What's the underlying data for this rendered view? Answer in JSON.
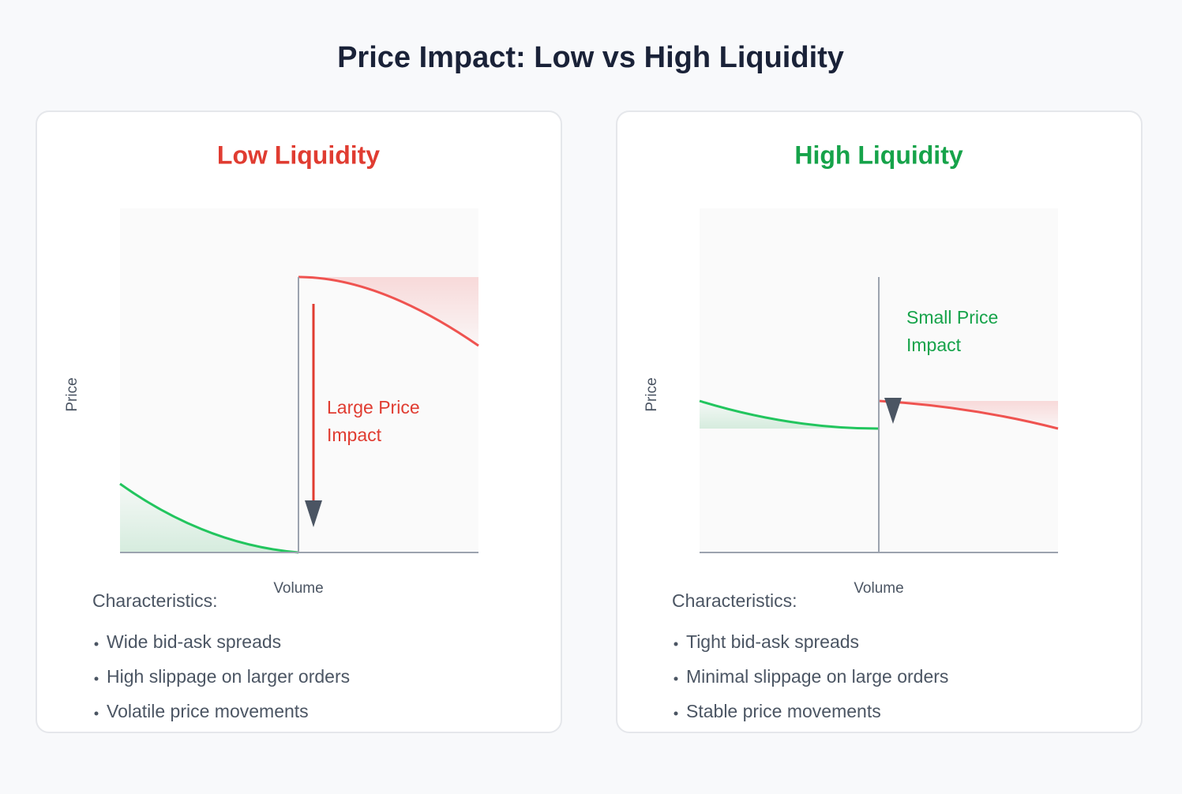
{
  "header": {
    "title": "Price Impact: Low vs High Liquidity"
  },
  "panels": [
    {
      "title": "Low Liquidity",
      "y_axis_label": "Price",
      "x_axis_label": "Volume",
      "annotation": [
        "Large Price",
        "Impact"
      ],
      "characteristics_heading": "Characteristics:",
      "characteristics": [
        "Wide bid-ask spreads",
        "High slippage on larger orders",
        "Volatile price movements"
      ]
    },
    {
      "title": "High Liquidity",
      "y_axis_label": "Price",
      "x_axis_label": "Volume",
      "annotation": [
        "Small Price",
        "Impact"
      ],
      "characteristics_heading": "Characteristics:",
      "characteristics": [
        "Tight bid-ask spreads",
        "Minimal slippage on large orders",
        "Stable price movements"
      ]
    }
  ]
}
